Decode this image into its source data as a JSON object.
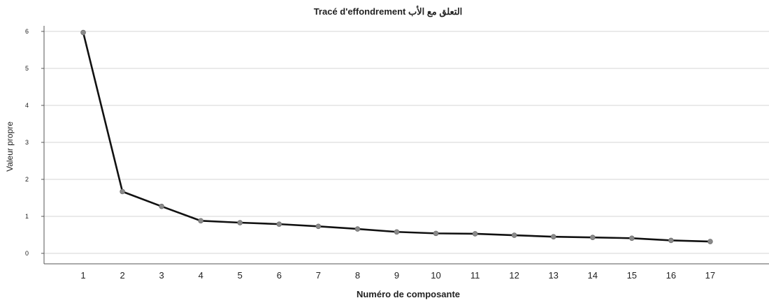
{
  "chart_data": {
    "type": "line",
    "title": "Tracé d'effondrement  التعلق مع الأب",
    "xlabel": "Numéro de composante",
    "ylabel": "Valeur propre",
    "x": [
      1,
      2,
      3,
      4,
      5,
      6,
      7,
      8,
      9,
      10,
      11,
      12,
      13,
      14,
      15,
      16,
      17
    ],
    "series": [
      {
        "values": [
          5.97,
          1.67,
          1.27,
          0.88,
          0.83,
          0.79,
          0.73,
          0.66,
          0.58,
          0.54,
          0.53,
          0.49,
          0.45,
          0.43,
          0.41,
          0.35,
          0.32
        ]
      }
    ],
    "ylim": [
      0,
      6
    ],
    "yticks": [
      0,
      1,
      2,
      3,
      4,
      5,
      6
    ],
    "xlim": [
      0,
      18.5
    ],
    "grid": true,
    "colors": {
      "line": "#111111",
      "marker": "#8a8a8a",
      "grid": "#d4d4d4",
      "axis": "#555555"
    }
  }
}
